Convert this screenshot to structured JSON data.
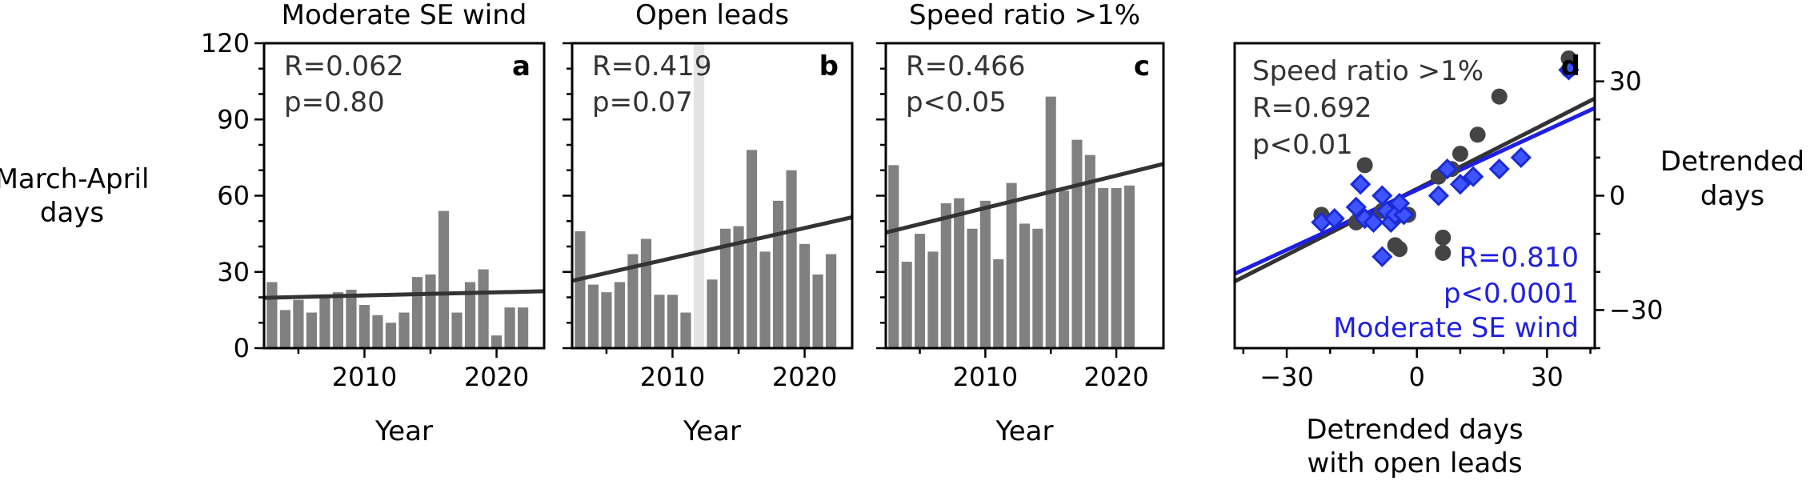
{
  "shared": {
    "ylabel": [
      "March-April",
      "days"
    ],
    "xlabel": "Year",
    "ylim": [
      0,
      120
    ],
    "yticks": [
      0,
      30,
      60,
      90,
      120
    ],
    "xlim": [
      2002.4,
      2023.6
    ],
    "xticks": [
      2010,
      2020
    ],
    "years": [
      2003,
      2004,
      2005,
      2006,
      2007,
      2008,
      2009,
      2010,
      2011,
      2012,
      2013,
      2014,
      2015,
      2016,
      2017,
      2018,
      2019,
      2020,
      2021,
      2022,
      2023
    ]
  },
  "chart_data": [
    {
      "id": "a",
      "type": "bar",
      "title": "Moderate SE wind",
      "letter": "a",
      "stats": [
        "R=0.062",
        "p=0.80"
      ],
      "values": [
        26,
        15,
        19,
        14,
        20,
        22,
        23,
        17,
        13,
        10,
        14,
        28,
        29,
        54,
        14,
        26,
        31,
        5,
        16,
        16,
        null
      ],
      "trend": [
        [
          2002.4,
          19.8
        ],
        [
          2023.6,
          22.4
        ]
      ]
    },
    {
      "id": "b",
      "type": "bar",
      "title": "Open leads",
      "letter": "b",
      "stats": [
        "R=0.419",
        "p=0.07"
      ],
      "values": [
        46,
        25,
        22,
        26,
        37,
        43,
        21,
        21,
        14,
        null,
        27,
        47,
        48,
        78,
        38,
        58,
        70,
        41,
        29,
        37,
        null
      ],
      "shaded_year": 2012,
      "trend": [
        [
          2002.4,
          26.5
        ],
        [
          2023.6,
          51.5
        ]
      ]
    },
    {
      "id": "c",
      "type": "bar",
      "title": "Speed ratio >1%",
      "letter": "c",
      "stats": [
        "R=0.466",
        "p<0.05"
      ],
      "values": [
        72,
        34,
        45,
        38,
        57,
        59,
        47,
        58,
        35,
        65,
        49,
        47,
        99,
        62,
        82,
        76,
        63,
        63,
        64,
        null,
        null
      ],
      "trend": [
        [
          2002.4,
          45.5
        ],
        [
          2023.6,
          72.5
        ]
      ]
    },
    {
      "id": "d",
      "type": "scatter",
      "letter": "d",
      "xlabel": [
        "Detrended days",
        "with open leads"
      ],
      "ylabel": [
        "Detrended",
        "days"
      ],
      "xlim": [
        -42,
        41
      ],
      "ylim": [
        -40,
        40
      ],
      "xticks": [
        -30,
        0,
        30
      ],
      "yticks": [
        -30,
        0,
        30
      ],
      "stats_black": [
        "Speed ratio >1%",
        "R=0.692",
        "p<0.01"
      ],
      "stats_blue": [
        "R=0.810",
        "p<0.0001",
        "Moderate SE wind"
      ],
      "series": [
        {
          "name": "Speed ratio >1%",
          "color": "#444444",
          "marker": "circle",
          "points": [
            [
              -22,
              -5
            ],
            [
              -13,
              -5
            ],
            [
              -12,
              8
            ],
            [
              -14,
              -7
            ],
            [
              -12,
              -6
            ],
            [
              -8,
              -4
            ],
            [
              -5,
              -13
            ],
            [
              -4,
              -14
            ],
            [
              -2,
              -5
            ],
            [
              6,
              -11
            ],
            [
              6,
              -15
            ],
            [
              5,
              5
            ],
            [
              8,
              7
            ],
            [
              10,
              11
            ],
            [
              14,
              16
            ],
            [
              19,
              26
            ],
            [
              35,
              36
            ],
            [
              35,
              33
            ]
          ],
          "trend": [
            [
              -42,
              -22.5
            ],
            [
              41,
              25.5
            ]
          ]
        },
        {
          "name": "Moderate SE wind",
          "color": "#3f54ff",
          "marker": "diamond",
          "points": [
            [
              -22,
              -7
            ],
            [
              -19,
              -6
            ],
            [
              -14,
              -3
            ],
            [
              -13,
              3
            ],
            [
              -12,
              -6
            ],
            [
              -10,
              -7
            ],
            [
              -8,
              0
            ],
            [
              -7,
              -4
            ],
            [
              -6,
              -7
            ],
            [
              -5,
              -5
            ],
            [
              -3,
              -5
            ],
            [
              -8,
              -16
            ],
            [
              -4,
              -2
            ],
            [
              5,
              0
            ],
            [
              7,
              7
            ],
            [
              10,
              3
            ],
            [
              13,
              5
            ],
            [
              19,
              7
            ],
            [
              24,
              10
            ],
            [
              35,
              33
            ]
          ],
          "trend": [
            [
              -42,
              -20.5
            ],
            [
              41,
              23
            ]
          ]
        }
      ]
    }
  ]
}
